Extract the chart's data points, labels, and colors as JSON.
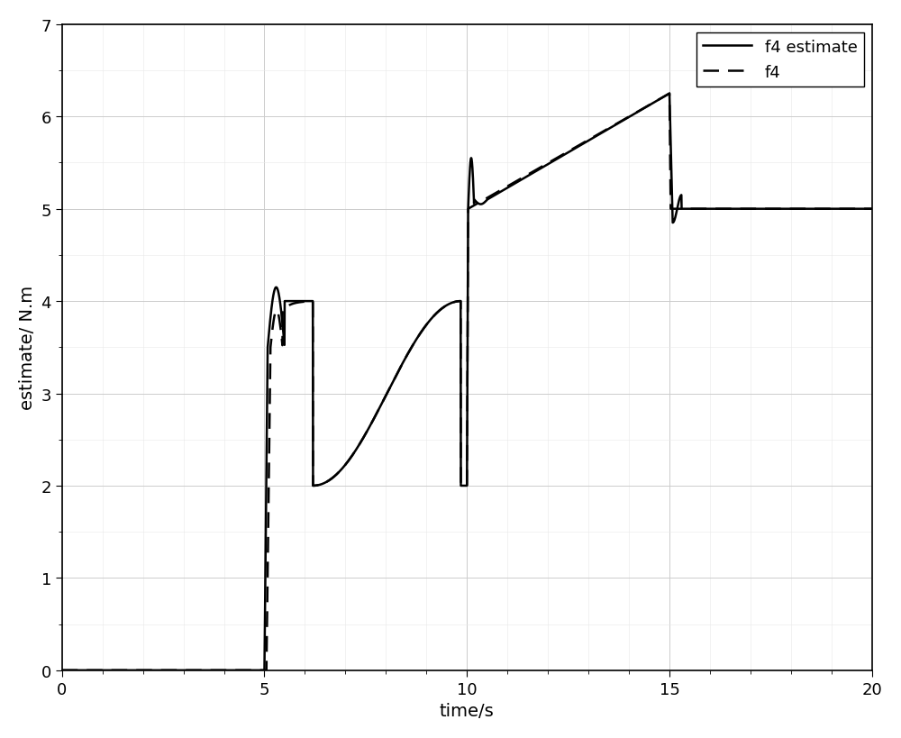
{
  "title": "",
  "xlabel": "time/s",
  "ylabel": "estimate/ N.m",
  "xlim": [
    0,
    20
  ],
  "ylim": [
    0,
    7
  ],
  "xticks": [
    0,
    5,
    10,
    15,
    20
  ],
  "yticks": [
    0,
    1,
    2,
    3,
    4,
    5,
    6,
    7
  ],
  "legend_labels": [
    "f4 estimate",
    "f4"
  ],
  "line_color": "#000000",
  "background_color": "#ffffff",
  "grid_color": "#cccccc",
  "grid_minor_color": "#e0e0e0"
}
